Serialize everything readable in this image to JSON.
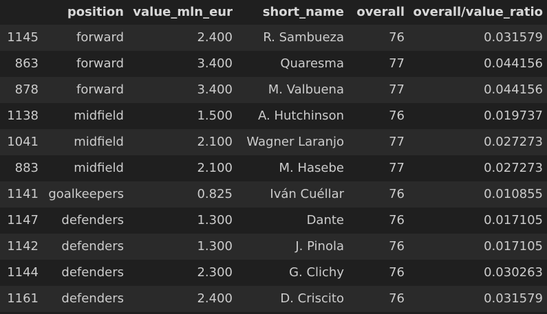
{
  "dataframe": {
    "columns": [
      "",
      "position",
      "value_mln_eur",
      "short_name",
      "overall",
      "overall/value_ratio"
    ],
    "rows": [
      {
        "index": "1145",
        "position": "forward",
        "value_mln_eur": "2.400",
        "short_name": "R. Sambueza",
        "overall": "76",
        "ratio": "0.031579"
      },
      {
        "index": "863",
        "position": "forward",
        "value_mln_eur": "3.400",
        "short_name": "Quaresma",
        "overall": "77",
        "ratio": "0.044156"
      },
      {
        "index": "878",
        "position": "forward",
        "value_mln_eur": "3.400",
        "short_name": "M. Valbuena",
        "overall": "77",
        "ratio": "0.044156"
      },
      {
        "index": "1138",
        "position": "midfield",
        "value_mln_eur": "1.500",
        "short_name": "A. Hutchinson",
        "overall": "76",
        "ratio": "0.019737"
      },
      {
        "index": "1041",
        "position": "midfield",
        "value_mln_eur": "2.100",
        "short_name": "Wagner Laranjo",
        "overall": "77",
        "ratio": "0.027273"
      },
      {
        "index": "883",
        "position": "midfield",
        "value_mln_eur": "2.100",
        "short_name": "M. Hasebe",
        "overall": "77",
        "ratio": "0.027273"
      },
      {
        "index": "1141",
        "position": "goalkeepers",
        "value_mln_eur": "0.825",
        "short_name": "Iván Cuéllar",
        "overall": "76",
        "ratio": "0.010855"
      },
      {
        "index": "1147",
        "position": "defenders",
        "value_mln_eur": "1.300",
        "short_name": "Dante",
        "overall": "76",
        "ratio": "0.017105"
      },
      {
        "index": "1142",
        "position": "defenders",
        "value_mln_eur": "1.300",
        "short_name": "J. Pinola",
        "overall": "76",
        "ratio": "0.017105"
      },
      {
        "index": "1144",
        "position": "defenders",
        "value_mln_eur": "2.300",
        "short_name": "G. Clichy",
        "overall": "76",
        "ratio": "0.030263"
      },
      {
        "index": "1161",
        "position": "defenders",
        "value_mln_eur": "2.400",
        "short_name": "D. Criscito",
        "overall": "76",
        "ratio": "0.031579"
      }
    ]
  }
}
